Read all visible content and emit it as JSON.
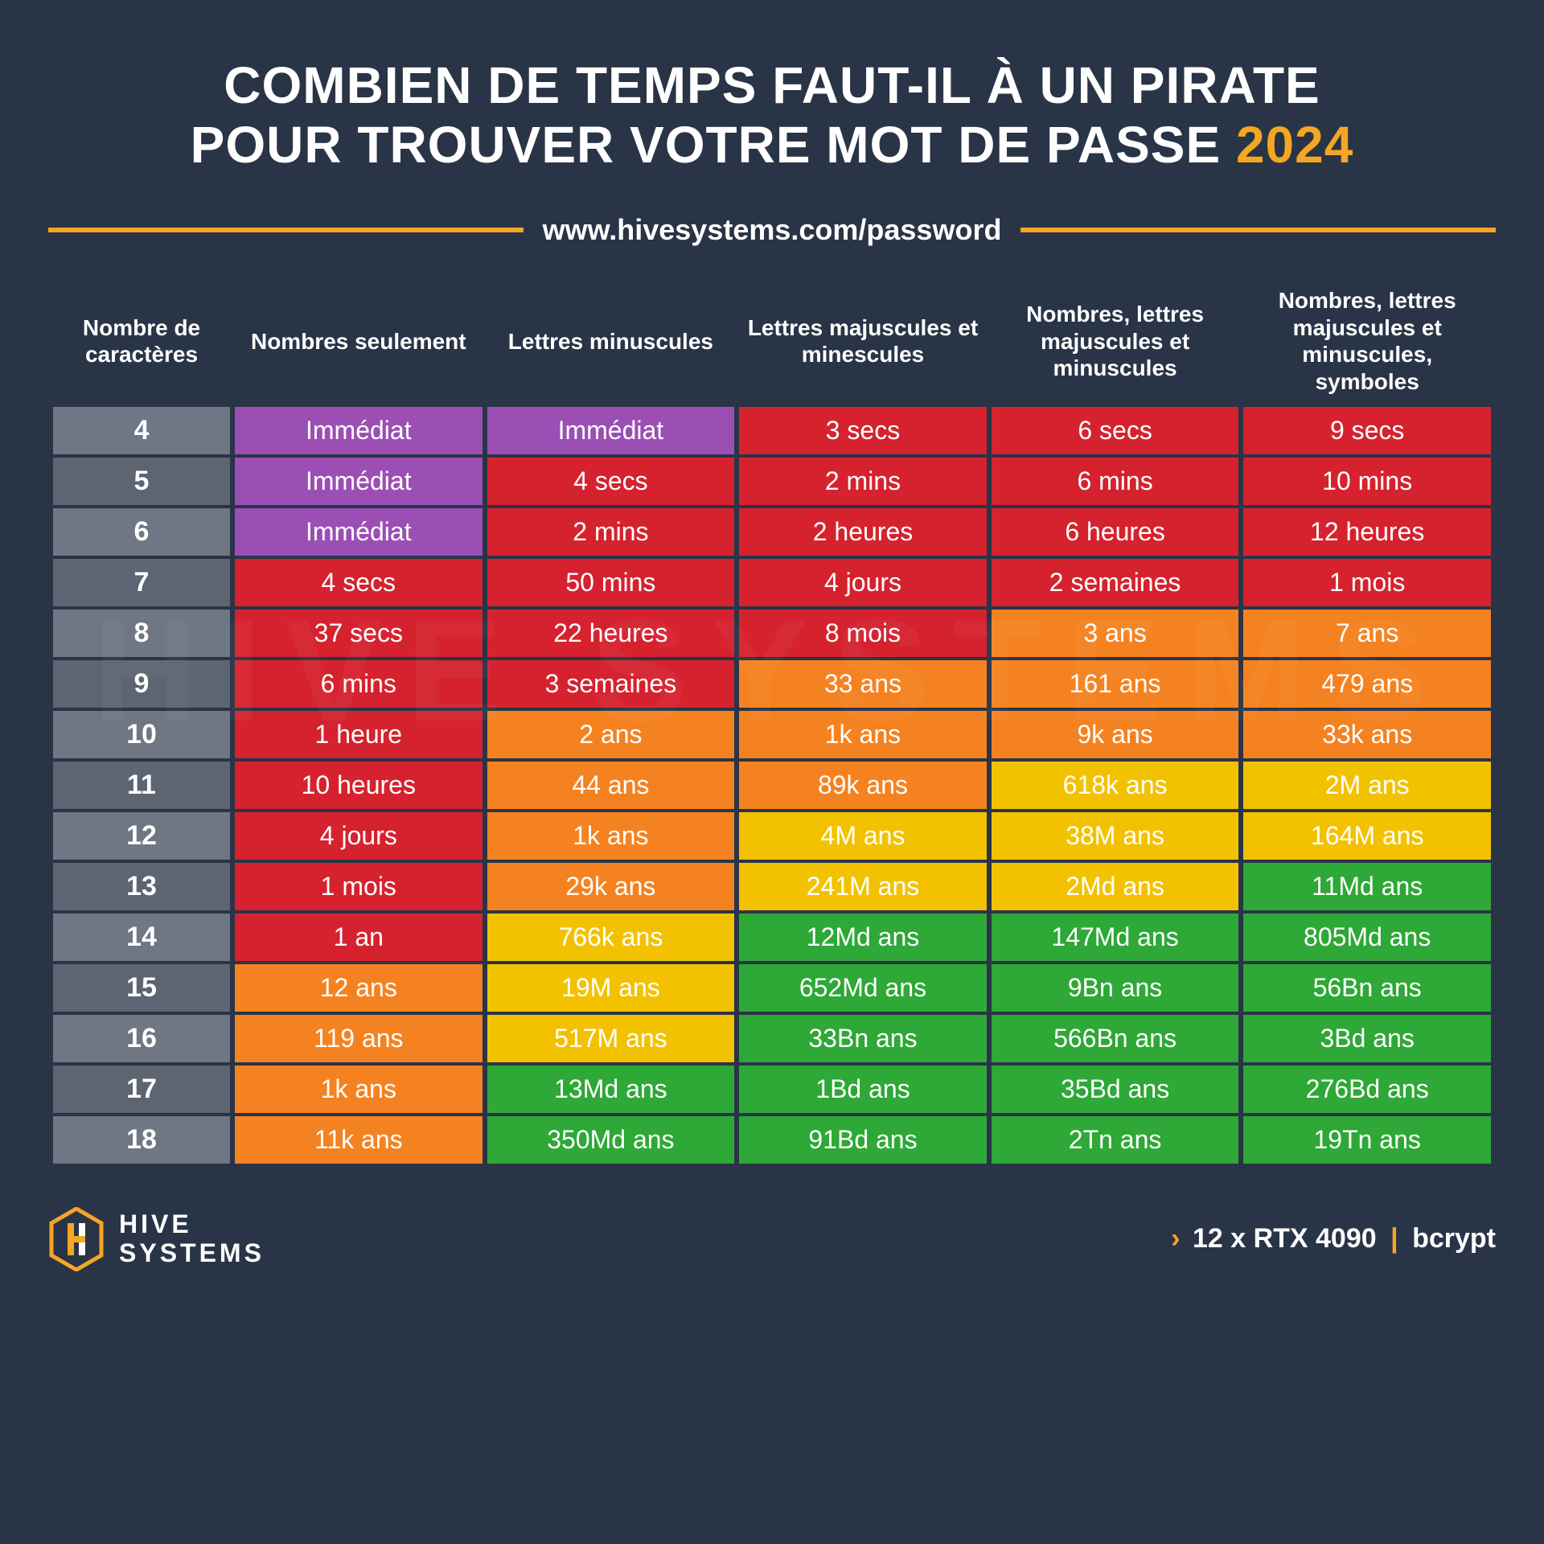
{
  "title_line1": "COMBIEN DE TEMPS FAUT-IL À UN PIRATE",
  "title_line2_a": "POUR TROUVER VOTRE MOT DE PASSE ",
  "title_year": "2024",
  "url": "www.hivesystems.com/password",
  "columns": [
    "Nombre de caractères",
    "Nombres seulement",
    "Lettres minuscules",
    "Lettres majuscules et minescules",
    "Nombres, lettres majuscules et minuscules",
    "Nombres, lettres majuscules et minuscules, symboles"
  ],
  "colors": {
    "purple": "#9b4fb5",
    "red": "#d6222f",
    "redorange": "#e94e24",
    "orange": "#f58220",
    "yellow": "#f2c200",
    "green": "#2ea836",
    "accent": "#f5a623",
    "bg": "#2a3447"
  },
  "rows": [
    {
      "n": "4",
      "cells": [
        {
          "v": "Immédiat",
          "c": "purple"
        },
        {
          "v": "Immédiat",
          "c": "purple"
        },
        {
          "v": "3 secs",
          "c": "red"
        },
        {
          "v": "6 secs",
          "c": "red"
        },
        {
          "v": "9 secs",
          "c": "red"
        }
      ]
    },
    {
      "n": "5",
      "cells": [
        {
          "v": "Immédiat",
          "c": "purple"
        },
        {
          "v": "4 secs",
          "c": "red"
        },
        {
          "v": "2 mins",
          "c": "red"
        },
        {
          "v": "6 mins",
          "c": "red"
        },
        {
          "v": "10 mins",
          "c": "red"
        }
      ]
    },
    {
      "n": "6",
      "cells": [
        {
          "v": "Immédiat",
          "c": "purple"
        },
        {
          "v": "2 mins",
          "c": "red"
        },
        {
          "v": "2 heures",
          "c": "red"
        },
        {
          "v": "6 heures",
          "c": "red"
        },
        {
          "v": "12 heures",
          "c": "red"
        }
      ]
    },
    {
      "n": "7",
      "cells": [
        {
          "v": "4 secs",
          "c": "red"
        },
        {
          "v": "50 mins",
          "c": "red"
        },
        {
          "v": "4 jours",
          "c": "red"
        },
        {
          "v": "2 semaines",
          "c": "red"
        },
        {
          "v": "1 mois",
          "c": "red"
        }
      ]
    },
    {
      "n": "8",
      "cells": [
        {
          "v": "37 secs",
          "c": "red"
        },
        {
          "v": "22 heures",
          "c": "red"
        },
        {
          "v": "8 mois",
          "c": "red"
        },
        {
          "v": "3 ans",
          "c": "orange"
        },
        {
          "v": "7 ans",
          "c": "orange"
        }
      ]
    },
    {
      "n": "9",
      "cells": [
        {
          "v": "6 mins",
          "c": "red"
        },
        {
          "v": "3 semaines",
          "c": "red"
        },
        {
          "v": "33 ans",
          "c": "orange"
        },
        {
          "v": "161 ans",
          "c": "orange"
        },
        {
          "v": "479 ans",
          "c": "orange"
        }
      ]
    },
    {
      "n": "10",
      "cells": [
        {
          "v": "1 heure",
          "c": "red"
        },
        {
          "v": "2 ans",
          "c": "orange"
        },
        {
          "v": "1k ans",
          "c": "orange"
        },
        {
          "v": "9k ans",
          "c": "orange"
        },
        {
          "v": "33k ans",
          "c": "orange"
        }
      ]
    },
    {
      "n": "11",
      "cells": [
        {
          "v": "10 heures",
          "c": "red"
        },
        {
          "v": "44 ans",
          "c": "orange"
        },
        {
          "v": "89k ans",
          "c": "orange"
        },
        {
          "v": "618k ans",
          "c": "yellow"
        },
        {
          "v": "2M ans",
          "c": "yellow"
        }
      ]
    },
    {
      "n": "12",
      "cells": [
        {
          "v": "4 jours",
          "c": "red"
        },
        {
          "v": "1k ans",
          "c": "orange"
        },
        {
          "v": "4M ans",
          "c": "yellow"
        },
        {
          "v": "38M ans",
          "c": "yellow"
        },
        {
          "v": "164M ans",
          "c": "yellow"
        }
      ]
    },
    {
      "n": "13",
      "cells": [
        {
          "v": "1 mois",
          "c": "red"
        },
        {
          "v": "29k ans",
          "c": "orange"
        },
        {
          "v": "241M ans",
          "c": "yellow"
        },
        {
          "v": "2Md ans",
          "c": "yellow"
        },
        {
          "v": "11Md ans",
          "c": "green"
        }
      ]
    },
    {
      "n": "14",
      "cells": [
        {
          "v": "1 an",
          "c": "red"
        },
        {
          "v": "766k ans",
          "c": "yellow"
        },
        {
          "v": "12Md ans",
          "c": "green"
        },
        {
          "v": "147Md ans",
          "c": "green"
        },
        {
          "v": "805Md ans",
          "c": "green"
        }
      ]
    },
    {
      "n": "15",
      "cells": [
        {
          "v": "12 ans",
          "c": "orange"
        },
        {
          "v": "19M ans",
          "c": "yellow"
        },
        {
          "v": "652Md ans",
          "c": "green"
        },
        {
          "v": "9Bn ans",
          "c": "green"
        },
        {
          "v": "56Bn ans",
          "c": "green"
        }
      ]
    },
    {
      "n": "16",
      "cells": [
        {
          "v": "119 ans",
          "c": "orange"
        },
        {
          "v": "517M ans",
          "c": "yellow"
        },
        {
          "v": "33Bn ans",
          "c": "green"
        },
        {
          "v": "566Bn ans",
          "c": "green"
        },
        {
          "v": "3Bd ans",
          "c": "green"
        }
      ]
    },
    {
      "n": "17",
      "cells": [
        {
          "v": "1k ans",
          "c": "orange"
        },
        {
          "v": "13Md ans",
          "c": "green"
        },
        {
          "v": "1Bd ans",
          "c": "green"
        },
        {
          "v": "35Bd ans",
          "c": "green"
        },
        {
          "v": "276Bd ans",
          "c": "green"
        }
      ]
    },
    {
      "n": "18",
      "cells": [
        {
          "v": "11k ans",
          "c": "orange"
        },
        {
          "v": "350Md ans",
          "c": "green"
        },
        {
          "v": "91Bd ans",
          "c": "green"
        },
        {
          "v": "2Tn ans",
          "c": "green"
        },
        {
          "v": "19Tn ans",
          "c": "green"
        }
      ]
    }
  ],
  "logo_text1": "HIVE",
  "logo_text2": "SYSTEMS",
  "hardware_prefix": "12 x RTX 4090",
  "hardware_suffix": "bcrypt",
  "watermark": "HIVE SYSTEMS",
  "typography": {
    "title_fontsize": 64,
    "header_fontsize": 28,
    "cell_fontsize": 32,
    "url_fontsize": 36,
    "footer_fontsize": 34
  }
}
